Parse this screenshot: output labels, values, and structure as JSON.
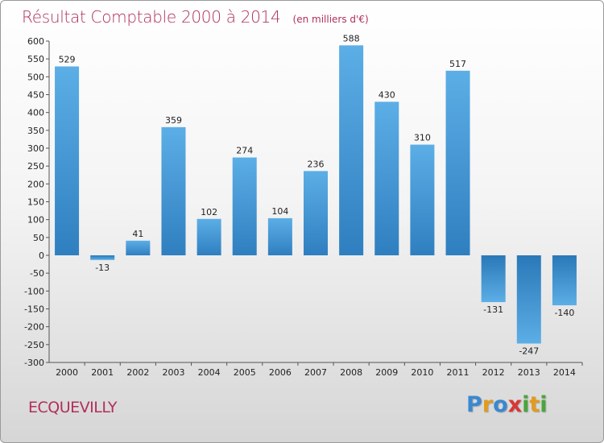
{
  "header": {
    "title": "Résultat Comptable 2000 à 2014",
    "subtitle": "(en milliers d'€)"
  },
  "footer": {
    "commune": "ECQUEVILLY",
    "logo_letters": [
      {
        "char": "P",
        "color": "#3a88d0"
      },
      {
        "char": "r",
        "color": "#e39b1d"
      },
      {
        "char": "o",
        "color": "#3a88d0"
      },
      {
        "char": "x",
        "color": "#d93636"
      },
      {
        "char": "i",
        "color": "#4aa53a"
      },
      {
        "char": "t",
        "color": "#e39b1d"
      },
      {
        "char": "i",
        "color": "#4aa53a"
      }
    ]
  },
  "chart_data": {
    "type": "bar",
    "categories": [
      "2000",
      "2001",
      "2002",
      "2003",
      "2004",
      "2005",
      "2006",
      "2007",
      "2008",
      "2009",
      "2010",
      "2011",
      "2012",
      "2013",
      "2014"
    ],
    "values": [
      529,
      -13,
      41,
      359,
      102,
      274,
      104,
      236,
      588,
      430,
      310,
      517,
      -131,
      -247,
      -140
    ],
    "title": "Résultat Comptable 2000 à 2014",
    "ylim": [
      -300,
      600
    ],
    "yticks": [
      600,
      550,
      500,
      450,
      400,
      350,
      300,
      250,
      200,
      150,
      100,
      50,
      0,
      -50,
      -100,
      -150,
      -200,
      -250,
      -300
    ],
    "grid": false,
    "colors": {
      "positive_light": "#5caee6",
      "positive_dark": "#2f7fc0",
      "negative_light": "#5caee6",
      "negative_dark": "#2a78b8"
    }
  }
}
